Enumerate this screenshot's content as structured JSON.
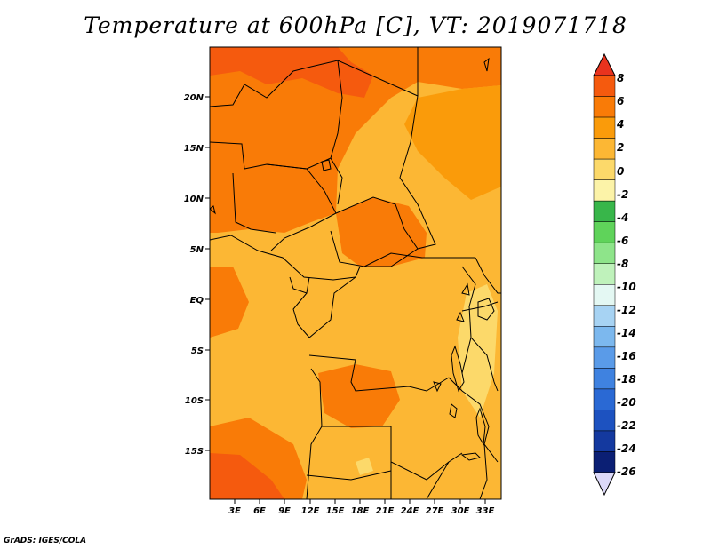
{
  "title": "Temperature at 600hPa [C], VT: 2019071718",
  "credit": "GrADS: IGES/COLA",
  "map": {
    "variable": "Temperature",
    "level": "600hPa",
    "units": "C",
    "valid_time": "2019071718",
    "lat_labels": [
      "20N",
      "15N",
      "10N",
      "5N",
      "EQ",
      "5S",
      "10S",
      "15S"
    ],
    "lon_labels": [
      "3E",
      "6E",
      "9E",
      "12E",
      "15E",
      "18E",
      "21E",
      "24E",
      "27E",
      "30E",
      "33E"
    ]
  },
  "colorbar": {
    "labels": [
      "8",
      "6",
      "4",
      "2",
      "0",
      "-2",
      "-4",
      "-6",
      "-8",
      "-10",
      "-12",
      "-14",
      "-16",
      "-18",
      "-20",
      "-22",
      "-24",
      "-26"
    ],
    "colors": [
      "#e9331e",
      "#f55a0e",
      "#f97b07",
      "#fa9b0a",
      "#fcb734",
      "#fcd96a",
      "#fcf3a8",
      "#38b64a",
      "#5fd35a",
      "#8ee48a",
      "#bff2bb",
      "#e4f8f3",
      "#a7d3f3",
      "#7cb8ee",
      "#5a9be8",
      "#3f82e0",
      "#2a69d4",
      "#1d52c0",
      "#14399f",
      "#0b1f74",
      "#dcd9f8"
    ]
  }
}
